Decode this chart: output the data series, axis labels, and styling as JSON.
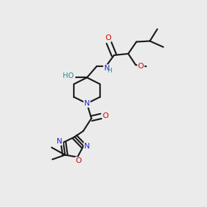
{
  "background_color": "#ebebeb",
  "bond_color": "#1a1a1a",
  "atom_colors": {
    "O": "#cc0000",
    "N": "#2222cc",
    "C": "#1a1a1a",
    "HO": "#2d8a8a"
  },
  "figsize": [
    3.0,
    3.0
  ],
  "dpi": 100
}
